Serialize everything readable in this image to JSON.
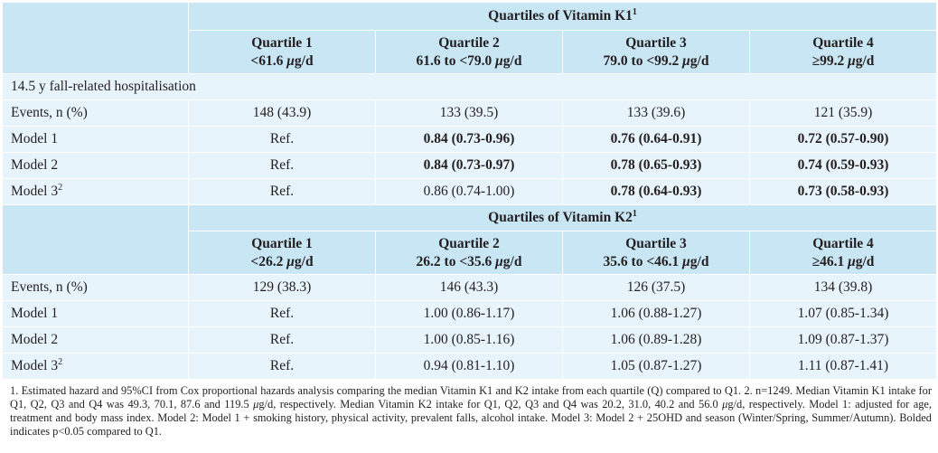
{
  "k1": {
    "group_title": "Quartiles of Vitamin K1",
    "group_sup": "1",
    "quartiles": [
      {
        "label": "Quartile 1",
        "range_pre": "<61.6 ",
        "mu": "μ",
        "range_post": "g/d"
      },
      {
        "label": "Quartile 2",
        "range_pre": "61.6 to <79.0 ",
        "mu": "μ",
        "range_post": "g/d"
      },
      {
        "label": "Quartile 3",
        "range_pre": "79.0 to <99.2 ",
        "mu": "μ",
        "range_post": "g/d"
      },
      {
        "label": "Quartile 4",
        "range_pre": "≥99.2 ",
        "mu": "μ",
        "range_post": "g/d"
      }
    ],
    "section_label": "14.5 y fall-related hospitalisation",
    "rows": [
      {
        "label": "Events, n (%)",
        "sup": "",
        "cells": [
          {
            "text": "148 (43.9)",
            "bold": false
          },
          {
            "text": "133 (39.5)",
            "bold": false
          },
          {
            "text": "133 (39.6)",
            "bold": false
          },
          {
            "text": "121 (35.9)",
            "bold": false
          }
        ]
      },
      {
        "label": "Model 1",
        "sup": "",
        "cells": [
          {
            "text": "Ref.",
            "bold": false
          },
          {
            "text": "0.84 (0.73-0.96)",
            "bold": true
          },
          {
            "text": "0.76 (0.64-0.91)",
            "bold": true
          },
          {
            "text": "0.72 (0.57-0.90)",
            "bold": true
          }
        ]
      },
      {
        "label": "Model 2",
        "sup": "",
        "cells": [
          {
            "text": "Ref.",
            "bold": false
          },
          {
            "text": "0.84 (0.73-0.97)",
            "bold": true
          },
          {
            "text": "0.78 (0.65-0.93)",
            "bold": true
          },
          {
            "text": "0.74 (0.59-0.93)",
            "bold": true
          }
        ]
      },
      {
        "label": "Model 3",
        "sup": "2",
        "cells": [
          {
            "text": "Ref.",
            "bold": false
          },
          {
            "text": "0.86 (0.74-1.00)",
            "bold": false
          },
          {
            "text": "0.78 (0.64-0.93)",
            "bold": true
          },
          {
            "text": "0.73 (0.58-0.93)",
            "bold": true
          }
        ]
      }
    ]
  },
  "k2": {
    "group_title": "Quartiles of Vitamin K2",
    "group_sup": "1",
    "quartiles": [
      {
        "label": "Quartile 1",
        "range_pre": "<26.2 ",
        "mu": "μ",
        "range_post": "g/d"
      },
      {
        "label": "Quartile 2",
        "range_pre": "26.2 to <35.6 ",
        "mu": "μ",
        "range_post": "g/d"
      },
      {
        "label": "Quartile 3",
        "range_pre": "35.6 to <46.1 ",
        "mu": "μ",
        "range_post": "g/d"
      },
      {
        "label": "Quartile 4",
        "range_pre": "≥46.1 ",
        "mu": "μ",
        "range_post": "g/d"
      }
    ],
    "rows": [
      {
        "label": "Events, n (%)",
        "sup": "",
        "cells": [
          {
            "text": "129 (38.3)",
            "bold": false
          },
          {
            "text": "146 (43.3)",
            "bold": false
          },
          {
            "text": "126 (37.5)",
            "bold": false
          },
          {
            "text": "134 (39.8)",
            "bold": false
          }
        ]
      },
      {
        "label": "Model 1",
        "sup": "",
        "cells": [
          {
            "text": "Ref.",
            "bold": false
          },
          {
            "text": "1.00 (0.86-1.17)",
            "bold": false
          },
          {
            "text": "1.06 (0.88-1.27)",
            "bold": false
          },
          {
            "text": "1.07 (0.85-1.34)",
            "bold": false
          }
        ]
      },
      {
        "label": "Model 2",
        "sup": "",
        "cells": [
          {
            "text": "Ref.",
            "bold": false
          },
          {
            "text": "1.00 (0.85-1.16)",
            "bold": false
          },
          {
            "text": "1.06 (0.89-1.28)",
            "bold": false
          },
          {
            "text": "1.09 (0.87-1.37)",
            "bold": false
          }
        ]
      },
      {
        "label": "Model 3",
        "sup": "2",
        "cells": [
          {
            "text": "Ref.",
            "bold": false
          },
          {
            "text": "0.94 (0.81-1.10)",
            "bold": false
          },
          {
            "text": "1.05 (0.87-1.27)",
            "bold": false
          },
          {
            "text": "1.11 (0.87-1.41)",
            "bold": false
          }
        ]
      }
    ]
  },
  "footnote": {
    "p1": "1. Estimated hazard and 95%CI from Cox proportional hazards analysis comparing the median Vitamin K1 and K2 intake from each quartile (Q) compared to Q1. 2.  n=1249. Median Vitamin K1 intake for Q1, Q2, Q3 and Q4 was 49.3, 70.1, 87.6 and 119.5 ",
    "mu1": "μ",
    "p2": "g/d, respectively. Median Vitamin K2 intake for Q1, Q2, Q3 and Q4 was 20.2, 31.0, 40.2 and 56.0 ",
    "mu2": "μ",
    "p3": "g/d, respectively. Model 1: adjusted for age, treatment and body mass index. Model 2: Model 1 + smoking history, physical activity, prevalent falls, alcohol intake. Model 3: Model 2 + 25OHD and season (Winter/Spring, Summer/Autumn). Bolded indicates p<0.05 compared to Q1."
  }
}
